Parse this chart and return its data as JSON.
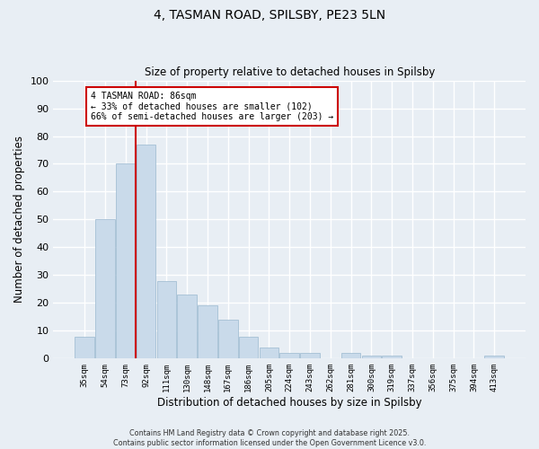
{
  "title_line1": "4, TASMAN ROAD, SPILSBY, PE23 5LN",
  "title_line2": "Size of property relative to detached houses in Spilsby",
  "xlabel": "Distribution of detached houses by size in Spilsby",
  "ylabel": "Number of detached properties",
  "categories": [
    "35sqm",
    "54sqm",
    "73sqm",
    "92sqm",
    "111sqm",
    "130sqm",
    "148sqm",
    "167sqm",
    "186sqm",
    "205sqm",
    "224sqm",
    "243sqm",
    "262sqm",
    "281sqm",
    "300sqm",
    "319sqm",
    "337sqm",
    "356sqm",
    "375sqm",
    "394sqm",
    "413sqm"
  ],
  "values": [
    8,
    50,
    70,
    77,
    28,
    23,
    19,
    14,
    8,
    4,
    2,
    2,
    0,
    2,
    1,
    1,
    0,
    0,
    0,
    0,
    1
  ],
  "bar_color": "#c9daea",
  "bar_edgecolor": "#9ab8cf",
  "vline_x_index": 2.5,
  "vline_color": "#cc0000",
  "annotation_text": "4 TASMAN ROAD: 86sqm\n← 33% of detached houses are smaller (102)\n66% of semi-detached houses are larger (203) →",
  "annotation_box_edgecolor": "#cc0000",
  "annotation_box_facecolor": "#ffffff",
  "ylim": [
    0,
    100
  ],
  "yticks": [
    0,
    10,
    20,
    30,
    40,
    50,
    60,
    70,
    80,
    90,
    100
  ],
  "background_color": "#e8eef4",
  "grid_color": "#ffffff",
  "footer_line1": "Contains HM Land Registry data © Crown copyright and database right 2025.",
  "footer_line2": "Contains public sector information licensed under the Open Government Licence v3.0."
}
